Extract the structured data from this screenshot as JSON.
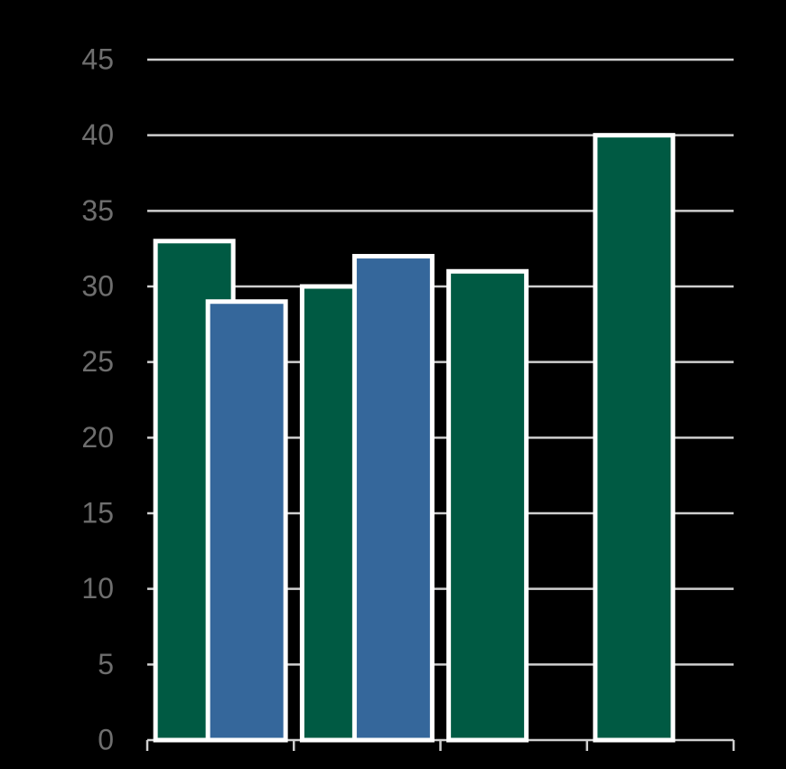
{
  "chart_data": {
    "type": "bar",
    "categories": [
      null,
      null,
      null,
      null
    ],
    "series": [
      {
        "color": "#005a43",
        "values": [
          33,
          30,
          31,
          40
        ]
      },
      {
        "color": "#35679b",
        "values": [
          29,
          32,
          null,
          null
        ]
      }
    ],
    "ylim": [
      0,
      45
    ],
    "yticks": [
      0,
      5,
      10,
      15,
      20,
      25,
      30,
      35,
      40,
      45
    ],
    "grid": true
  }
}
